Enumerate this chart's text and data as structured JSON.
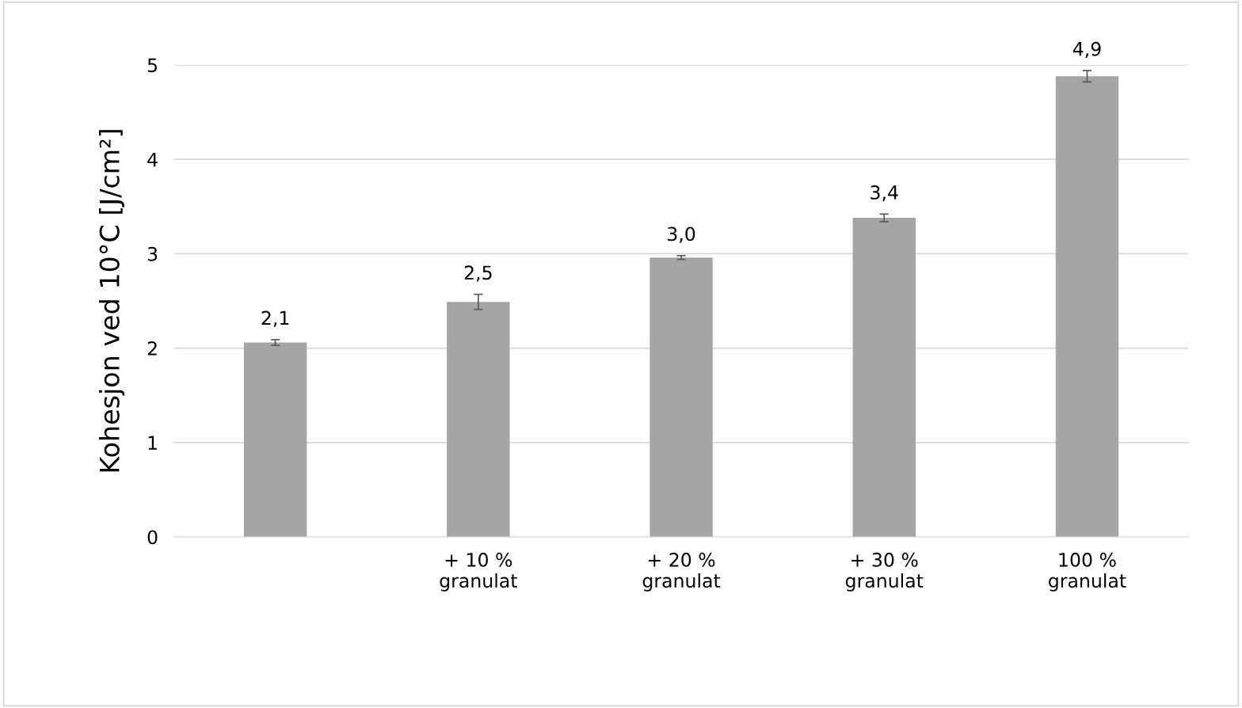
{
  "chart_data": {
    "type": "bar",
    "ylabel": "Kohesjon ved 10°C [J/cm²]",
    "categories": [
      null,
      "+ 10 %\ngranulat",
      "+ 20 %\ngranulat",
      "+ 30 %\ngranulat",
      "100 %\ngranulat"
    ],
    "values": [
      2.06,
      2.49,
      2.96,
      3.38,
      4.88
    ],
    "errors": [
      0.03,
      0.08,
      0.02,
      0.04,
      0.06
    ],
    "value_labels": [
      "2,1",
      "2,5",
      "3,0",
      "3,4",
      "4,9"
    ],
    "color": "#a5a5a5",
    "ylim": [
      0,
      5
    ],
    "yticks": [
      0,
      1,
      2,
      3,
      4,
      5
    ],
    "grid": "y",
    "legend": false
  }
}
